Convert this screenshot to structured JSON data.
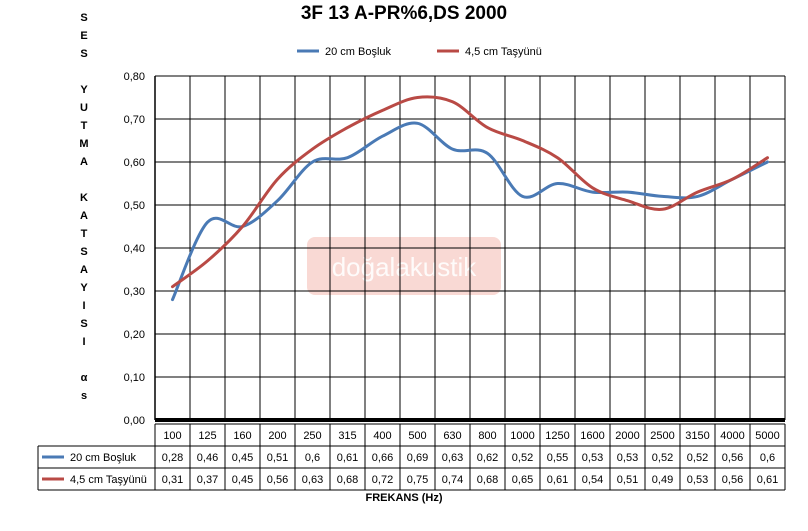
{
  "chart_data": {
    "type": "line",
    "title": "3F 13 A-PR%6,DS 2000",
    "ylabel": "SES YUTMA KATSAYISI αs",
    "xlabel": "FREKANS (Hz)",
    "x": [
      "100",
      "125",
      "160",
      "200",
      "250",
      "315",
      "400",
      "500",
      "630",
      "800",
      "1000",
      "1250",
      "1600",
      "2000",
      "2500",
      "3150",
      "4000",
      "5000"
    ],
    "ylim": [
      0,
      0.8
    ],
    "yticks": [
      "0,00",
      "0,10",
      "0,20",
      "0,30",
      "0,40",
      "0,50",
      "0,60",
      "0,70",
      "0,80"
    ],
    "grid": true,
    "legend": "top",
    "series": [
      {
        "name": "20 cm Boşluk",
        "color": "#4a7ab5",
        "values": [
          0.28,
          0.46,
          0.45,
          0.51,
          0.6,
          0.61,
          0.66,
          0.69,
          0.63,
          0.62,
          0.52,
          0.55,
          0.53,
          0.53,
          0.52,
          0.52,
          0.56,
          0.6
        ],
        "labels": [
          "0,28",
          "0,46",
          "0,45",
          "0,51",
          "0,6",
          "0,61",
          "0,66",
          "0,69",
          "0,63",
          "0,62",
          "0,52",
          "0,55",
          "0,53",
          "0,53",
          "0,52",
          "0,52",
          "0,56",
          "0,6"
        ]
      },
      {
        "name": "4,5 cm Taşyünü",
        "color": "#b94a45",
        "values": [
          0.31,
          0.37,
          0.45,
          0.56,
          0.63,
          0.68,
          0.72,
          0.75,
          0.74,
          0.68,
          0.65,
          0.61,
          0.54,
          0.51,
          0.49,
          0.53,
          0.56,
          0.61
        ],
        "labels": [
          "0,31",
          "0,37",
          "0,45",
          "0,56",
          "0,63",
          "0,68",
          "0,72",
          "0,75",
          "0,74",
          "0,68",
          "0,65",
          "0,61",
          "0,54",
          "0,51",
          "0,49",
          "0,53",
          "0,56",
          "0,61"
        ]
      }
    ],
    "watermark": "doğalakustik"
  }
}
